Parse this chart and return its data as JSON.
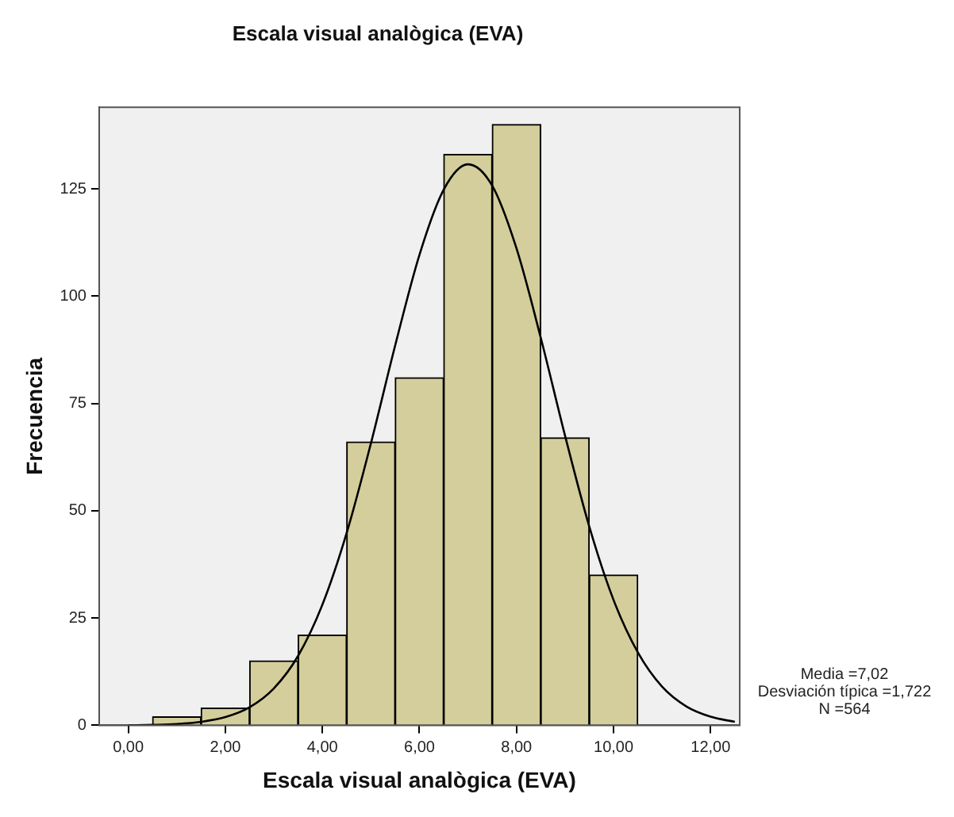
{
  "chart_data": {
    "type": "histogram",
    "title": "Escala visual analògica (EVA)",
    "xlabel": "Escala visual analògica (EVA)",
    "ylabel": "Frecuencia",
    "bins": [
      0.5,
      1.5,
      2.5,
      3.5,
      4.5,
      5.5,
      6.5,
      7.5,
      8.5,
      9.5,
      10.5
    ],
    "values": [
      2,
      4,
      15,
      21,
      66,
      81,
      133,
      140,
      67,
      35
    ],
    "color": "#d3ce9c",
    "series": [
      {
        "type": "line",
        "color": "#000000",
        "x": [
          0,
          0.5,
          1,
          1.5,
          2,
          2.5,
          3,
          3.5,
          4,
          4.5,
          5,
          5.5,
          6,
          6.5,
          7,
          7.5,
          8,
          8.5,
          9,
          9.5,
          10,
          10.5,
          11,
          11.5,
          12,
          12.5
        ],
        "values": [
          0.0,
          0.1,
          0.3,
          0.8,
          1.9,
          4.2,
          8.6,
          16.2,
          28.1,
          44.8,
          65.7,
          88.5,
          109.6,
          124.8,
          130.7,
          125.7,
          111.1,
          90.3,
          67.5,
          46.3,
          29.2,
          17.0,
          9.0,
          4.4,
          2.0,
          0.8
        ]
      }
    ],
    "xlim": [
      -0.6,
      12.6
    ],
    "xticks": [
      {
        "value": 0,
        "label": "0,00"
      },
      {
        "value": 2,
        "label": "2,00"
      },
      {
        "value": 4,
        "label": "4,00"
      },
      {
        "value": 6,
        "label": "6,00"
      },
      {
        "value": 8,
        "label": "8,00"
      },
      {
        "value": 10,
        "label": "10,00"
      },
      {
        "value": 12,
        "label": "12,00"
      }
    ],
    "ylim": [
      0,
      144
    ],
    "yticks": [
      0,
      25,
      50,
      75,
      100,
      125
    ],
    "grid": false,
    "legend": false,
    "marker": "none",
    "annotations": [
      "Media =7,02",
      "Desviación típica =1,722",
      "N =564"
    ]
  }
}
